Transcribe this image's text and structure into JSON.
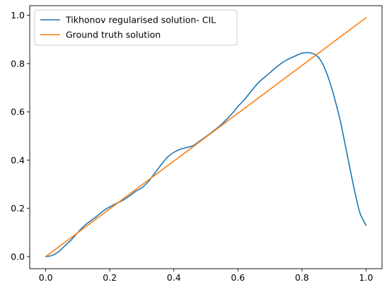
{
  "chart_data": {
    "type": "line",
    "title": "",
    "xlabel": "",
    "ylabel": "",
    "xlim": [
      -0.05,
      1.05
    ],
    "ylim": [
      -0.05,
      1.04
    ],
    "x_ticks": [
      0.0,
      0.2,
      0.4,
      0.6,
      0.8,
      1.0
    ],
    "x_tick_labels": [
      "0.0",
      "0.2",
      "0.4",
      "0.6",
      "0.8",
      "1.0"
    ],
    "y_ticks": [
      0.0,
      0.2,
      0.4,
      0.6,
      0.8,
      1.0
    ],
    "y_tick_labels": [
      "0.0",
      "0.2",
      "0.4",
      "0.6",
      "0.8",
      "1.0"
    ],
    "grid": false,
    "legend_position": "top-left",
    "series": [
      {
        "name": "Tikhonov regularised solution- CIL",
        "color": "#1f77b4",
        "x": [
          0.0,
          0.02,
          0.04,
          0.06,
          0.08,
          0.1,
          0.12,
          0.14,
          0.16,
          0.18,
          0.2,
          0.22,
          0.24,
          0.26,
          0.28,
          0.3,
          0.32,
          0.34,
          0.36,
          0.38,
          0.4,
          0.42,
          0.44,
          0.46,
          0.48,
          0.5,
          0.52,
          0.54,
          0.56,
          0.58,
          0.6,
          0.62,
          0.64,
          0.66,
          0.68,
          0.7,
          0.72,
          0.74,
          0.76,
          0.78,
          0.8,
          0.82,
          0.84,
          0.86,
          0.88,
          0.9,
          0.92,
          0.94,
          0.96,
          0.98,
          1.0
        ],
        "y": [
          0.0,
          0.005,
          0.02,
          0.045,
          0.07,
          0.1,
          0.127,
          0.148,
          0.168,
          0.19,
          0.206,
          0.22,
          0.233,
          0.25,
          0.27,
          0.285,
          0.31,
          0.345,
          0.38,
          0.412,
          0.432,
          0.445,
          0.452,
          0.46,
          0.478,
          0.497,
          0.517,
          0.538,
          0.562,
          0.59,
          0.622,
          0.65,
          0.683,
          0.715,
          0.74,
          0.762,
          0.785,
          0.805,
          0.82,
          0.832,
          0.843,
          0.845,
          0.838,
          0.81,
          0.75,
          0.665,
          0.56,
          0.43,
          0.3,
          0.185,
          0.13
        ]
      },
      {
        "name": "Ground truth solution",
        "color": "#ff7f0e",
        "x": [
          0.0,
          1.0
        ],
        "y": [
          0.0,
          0.99
        ]
      }
    ]
  }
}
